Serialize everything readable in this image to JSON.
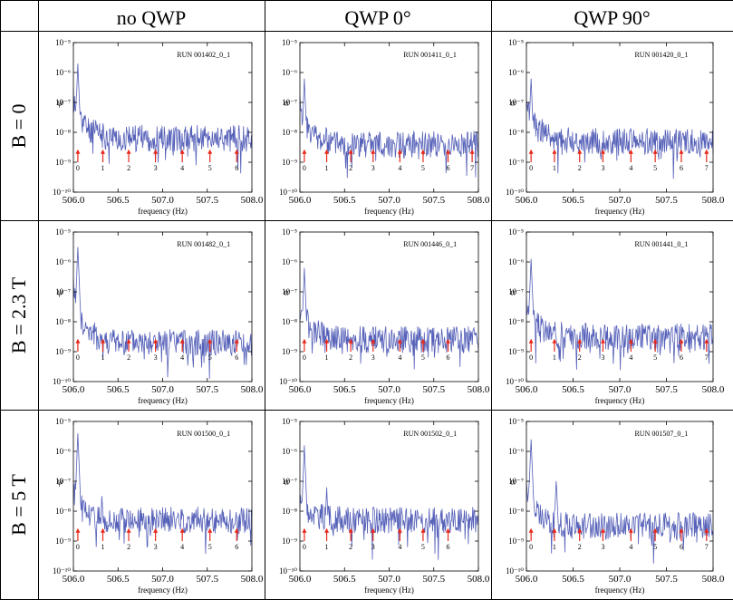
{
  "table": {
    "columns": [
      "no QWP",
      "QWP 0°",
      "QWP 90°"
    ],
    "rows": [
      "B = 0",
      "B = 2.3 T",
      "B = 5 T"
    ]
  },
  "colors": {
    "trace": "#5560b8",
    "marker": "#e8271a",
    "frame": "#000000"
  },
  "chart_data": [
    {
      "type": "line",
      "run": "RUN 001402_0_1",
      "ylabel": "ψ",
      "xlabel": "frequency (Hz)",
      "xlim": [
        506.0,
        508.0
      ],
      "ylim_log10": [
        -10,
        -5
      ],
      "x_ticks": [
        "506.0",
        "506.5",
        "507.0",
        "507.5",
        "508.0"
      ],
      "y_ticks": [
        "10⁻¹⁰",
        "10⁻⁹",
        "10⁻⁸",
        "10⁻⁷",
        "10⁻⁶",
        "10⁻⁵"
      ],
      "markers": [
        {
          "label": "0",
          "x": 506.05
        },
        {
          "label": "1",
          "x": 506.33
        },
        {
          "label": "2",
          "x": 506.62
        },
        {
          "label": "3",
          "x": 506.92
        },
        {
          "label": "4",
          "x": 507.22
        },
        {
          "label": "5",
          "x": 507.53
        },
        {
          "label": "6",
          "x": 507.83
        }
      ],
      "peaks": [
        {
          "x": 506.05,
          "log10": -5.7
        }
      ],
      "base_log10": -8.2,
      "decay_log10": 1.3,
      "seed": 11
    },
    {
      "type": "line",
      "run": "RUN 001411_0_1",
      "ylabel": "α",
      "xlabel": "frequency (Hz)",
      "xlim": [
        506.0,
        508.0
      ],
      "ylim_log10": [
        -10,
        -5
      ],
      "x_ticks": [
        "506.0",
        "506.5",
        "507.0",
        "507.5",
        "508.0"
      ],
      "y_ticks": [
        "10⁻¹⁰",
        "10⁻⁹",
        "10⁻⁸",
        "10⁻⁷",
        "10⁻⁶",
        "10⁻⁵"
      ],
      "markers": [
        {
          "label": "0",
          "x": 506.05
        },
        {
          "label": "1",
          "x": 506.3
        },
        {
          "label": "2",
          "x": 506.57
        },
        {
          "label": "3",
          "x": 506.82
        },
        {
          "label": "4",
          "x": 507.12
        },
        {
          "label": "5",
          "x": 507.38
        },
        {
          "label": "6",
          "x": 507.66
        },
        {
          "label": "7",
          "x": 507.93
        }
      ],
      "peaks": [
        {
          "x": 506.05,
          "log10": -6.2
        }
      ],
      "base_log10": -8.4,
      "decay_log10": 1.2,
      "seed": 23
    },
    {
      "type": "line",
      "run": "RUN 001420_0_1",
      "ylabel": "α",
      "xlabel": "frequency (Hz)",
      "xlim": [
        506.0,
        508.0
      ],
      "ylim_log10": [
        -10,
        -5
      ],
      "x_ticks": [
        "506.0",
        "506.5",
        "507.0",
        "507.5",
        "508.0"
      ],
      "y_ticks": [
        "10⁻¹⁰",
        "10⁻⁹",
        "10⁻⁸",
        "10⁻⁷",
        "10⁻⁶",
        "10⁻⁵"
      ],
      "markers": [
        {
          "label": "0",
          "x": 506.05
        },
        {
          "label": "1",
          "x": 506.3
        },
        {
          "label": "2",
          "x": 506.57
        },
        {
          "label": "3",
          "x": 506.82
        },
        {
          "label": "4",
          "x": 507.12
        },
        {
          "label": "5",
          "x": 507.38
        },
        {
          "label": "6",
          "x": 507.66
        },
        {
          "label": "7",
          "x": 507.93
        }
      ],
      "peaks": [
        {
          "x": 506.05,
          "log10": -6.2
        }
      ],
      "base_log10": -8.3,
      "decay_log10": 1.2,
      "seed": 37
    },
    {
      "type": "line",
      "run": "RUN 001482_0_1",
      "ylabel": "ψ",
      "xlabel": "frequency (Hz)",
      "xlim": [
        506.0,
        508.0
      ],
      "ylim_log10": [
        -10,
        -5
      ],
      "x_ticks": [
        "506.0",
        "506.5",
        "507.0",
        "507.5",
        "508.0"
      ],
      "y_ticks": [
        "10⁻¹⁰",
        "10⁻⁹",
        "10⁻⁸",
        "10⁻⁷",
        "10⁻⁶",
        "10⁻⁵"
      ],
      "markers": [
        {
          "label": "0",
          "x": 506.05
        },
        {
          "label": "1",
          "x": 506.33
        },
        {
          "label": "2",
          "x": 506.62
        },
        {
          "label": "3",
          "x": 506.92
        },
        {
          "label": "4",
          "x": 507.22
        },
        {
          "label": "5",
          "x": 507.53
        },
        {
          "label": "6",
          "x": 507.83
        }
      ],
      "peaks": [
        {
          "x": 506.05,
          "log10": -5.5
        }
      ],
      "base_log10": -8.7,
      "decay_log10": 1.7,
      "seed": 41
    },
    {
      "type": "line",
      "run": "RUN 001446_0_1",
      "ylabel": "α",
      "xlabel": "frequency (Hz)",
      "xlim": [
        506.0,
        508.0
      ],
      "ylim_log10": [
        -10,
        -5
      ],
      "x_ticks": [
        "506.0",
        "506.5",
        "507.0",
        "507.5",
        "508.0"
      ],
      "y_ticks": [
        "10⁻¹⁰",
        "10⁻⁹",
        "10⁻⁸",
        "10⁻⁷",
        "10⁻⁶",
        "10⁻⁵"
      ],
      "markers": [
        {
          "label": "0",
          "x": 506.05
        },
        {
          "label": "1",
          "x": 506.3
        },
        {
          "label": "2",
          "x": 506.57
        },
        {
          "label": "3",
          "x": 506.82
        },
        {
          "label": "4",
          "x": 507.12
        },
        {
          "label": "5",
          "x": 507.38
        },
        {
          "label": "6",
          "x": 507.66
        }
      ],
      "peaks": [
        {
          "x": 506.05,
          "log10": -6.2
        }
      ],
      "base_log10": -8.6,
      "decay_log10": 1.1,
      "seed": 53
    },
    {
      "type": "line",
      "run": "RUN 001441_0_1",
      "ylabel": "α",
      "xlabel": "frequency (Hz)",
      "xlim": [
        506.0,
        508.0
      ],
      "ylim_log10": [
        -10,
        -5
      ],
      "x_ticks": [
        "506.0",
        "506.5",
        "507.0",
        "507.5",
        "508.0"
      ],
      "y_ticks": [
        "10⁻¹⁰",
        "10⁻⁹",
        "10⁻⁸",
        "10⁻⁷",
        "10⁻⁶",
        "10⁻⁵"
      ],
      "markers": [
        {
          "label": "0",
          "x": 506.05
        },
        {
          "label": "1",
          "x": 506.3
        },
        {
          "label": "2",
          "x": 506.57
        },
        {
          "label": "3",
          "x": 506.82
        },
        {
          "label": "4",
          "x": 507.12
        },
        {
          "label": "5",
          "x": 507.38
        },
        {
          "label": "6",
          "x": 507.66
        },
        {
          "label": "7",
          "x": 507.93
        }
      ],
      "peaks": [
        {
          "x": 506.05,
          "log10": -5.9
        }
      ],
      "base_log10": -8.5,
      "decay_log10": 1.1,
      "seed": 67
    },
    {
      "type": "line",
      "run": "RUN 001500_0_1",
      "ylabel": "ψ",
      "xlabel": "frequency (Hz)",
      "xlim": [
        506.0,
        508.0
      ],
      "ylim_log10": [
        -10,
        -5
      ],
      "x_ticks": [
        "506.0",
        "506.5",
        "507.0",
        "507.5",
        "508.0"
      ],
      "y_ticks": [
        "10⁻¹⁰",
        "10⁻⁹",
        "10⁻⁸",
        "10⁻⁷",
        "10⁻⁶",
        "10⁻⁵"
      ],
      "markers": [
        {
          "label": "0",
          "x": 506.05
        },
        {
          "label": "1",
          "x": 506.33
        },
        {
          "label": "2",
          "x": 506.62
        },
        {
          "label": "3",
          "x": 506.92
        },
        {
          "label": "4",
          "x": 507.22
        },
        {
          "label": "5",
          "x": 507.53
        },
        {
          "label": "6",
          "x": 507.83
        }
      ],
      "peaks": [
        {
          "x": 506.05,
          "log10": -5.4
        },
        {
          "x": 506.32,
          "log10": -7.4
        }
      ],
      "base_log10": -8.3,
      "decay_log10": 1.0,
      "seed": 79
    },
    {
      "type": "line",
      "run": "RUN 001502_0_1",
      "ylabel": "α",
      "xlabel": "frequency (Hz)",
      "xlim": [
        506.0,
        508.0
      ],
      "ylim_log10": [
        -10,
        -5
      ],
      "x_ticks": [
        "506.0",
        "506.5",
        "507.0",
        "507.5",
        "508.0"
      ],
      "y_ticks": [
        "10⁻¹⁰",
        "10⁻⁹",
        "10⁻⁸",
        "10⁻⁷",
        "10⁻⁶",
        "10⁻⁵"
      ],
      "markers": [
        {
          "label": "0",
          "x": 506.05
        },
        {
          "label": "1",
          "x": 506.3
        },
        {
          "label": "2",
          "x": 506.57
        },
        {
          "label": "3",
          "x": 506.82
        },
        {
          "label": "4",
          "x": 507.12
        },
        {
          "label": "5",
          "x": 507.38
        },
        {
          "label": "6",
          "x": 507.66
        }
      ],
      "peaks": [
        {
          "x": 506.05,
          "log10": -5.8
        },
        {
          "x": 506.3,
          "log10": -7.2
        }
      ],
      "base_log10": -8.3,
      "decay_log10": 0.8,
      "seed": 83
    },
    {
      "type": "line",
      "run": "RUN 001507_0_1",
      "ylabel": "α",
      "xlabel": "frequency (Hz)",
      "xlim": [
        506.0,
        508.0
      ],
      "ylim_log10": [
        -10,
        -5
      ],
      "x_ticks": [
        "506.0",
        "506.5",
        "507.0",
        "507.5",
        "508.0"
      ],
      "y_ticks": [
        "10⁻¹⁰",
        "10⁻⁹",
        "10⁻⁸",
        "10⁻⁷",
        "10⁻⁶",
        "10⁻⁵"
      ],
      "markers": [
        {
          "label": "0",
          "x": 506.05
        },
        {
          "label": "1",
          "x": 506.3
        },
        {
          "label": "2",
          "x": 506.57
        },
        {
          "label": "3",
          "x": 506.82
        },
        {
          "label": "4",
          "x": 507.12
        },
        {
          "label": "5",
          "x": 507.38
        },
        {
          "label": "6",
          "x": 507.66
        },
        {
          "label": "7",
          "x": 507.93
        }
      ],
      "peaks": [
        {
          "x": 506.05,
          "log10": -5.6
        },
        {
          "x": 506.32,
          "log10": -6.9
        }
      ],
      "base_log10": -8.5,
      "decay_log10": 1.2,
      "seed": 97
    }
  ]
}
